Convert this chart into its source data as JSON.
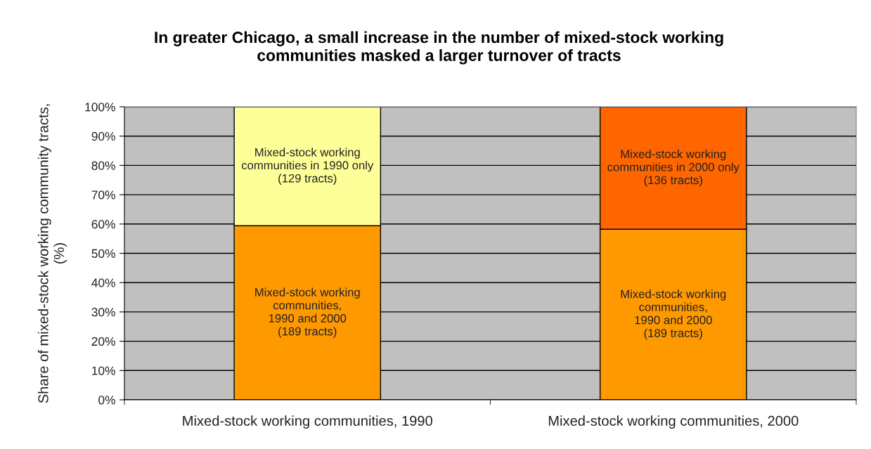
{
  "chart_data": {
    "type": "bar",
    "title": "In greater Chicago, a small increase in the number of mixed-stock working\ncommunities masked a larger turnover of tracts",
    "ylabel": "Share of mixed-stock working community tracts,\n(%)",
    "categories": [
      "Mixed-stock working communities, 1990",
      "Mixed-stock working communities, 2000"
    ],
    "stacked": true,
    "series": [
      {
        "values": [
          59.4,
          58.2
        ],
        "colors": [
          "#ff9900",
          "#ff9900"
        ]
      },
      {
        "values": [
          40.6,
          41.8
        ],
        "colors": [
          "#ffff99",
          "#ff6600"
        ]
      }
    ],
    "ylim": [
      0,
      100
    ],
    "yticks": [
      {
        "value": 0,
        "label": "0%"
      },
      {
        "value": 10,
        "label": "10%"
      },
      {
        "value": 20,
        "label": "20%"
      },
      {
        "value": 30,
        "label": "30%"
      },
      {
        "value": 40,
        "label": "40%"
      },
      {
        "value": 50,
        "label": "50%"
      },
      {
        "value": 60,
        "label": "60%"
      },
      {
        "value": 70,
        "label": "70%"
      },
      {
        "value": 80,
        "label": "80%"
      },
      {
        "value": 90,
        "label": "90%"
      },
      {
        "value": 100,
        "label": "100%"
      }
    ],
    "grid": "y",
    "annotations": [
      "Mixed-stock working\ncommunities in 1990 only\n(129 tracts)",
      "Mixed-stock working\ncommunities,\n1990 and 2000\n(189 tracts)",
      "Mixed-stock working\ncommunities in 2000 only\n(136 tracts)",
      "Mixed-stock working\ncommunities,\n1990 and 2000\n(189 tracts)"
    ]
  }
}
